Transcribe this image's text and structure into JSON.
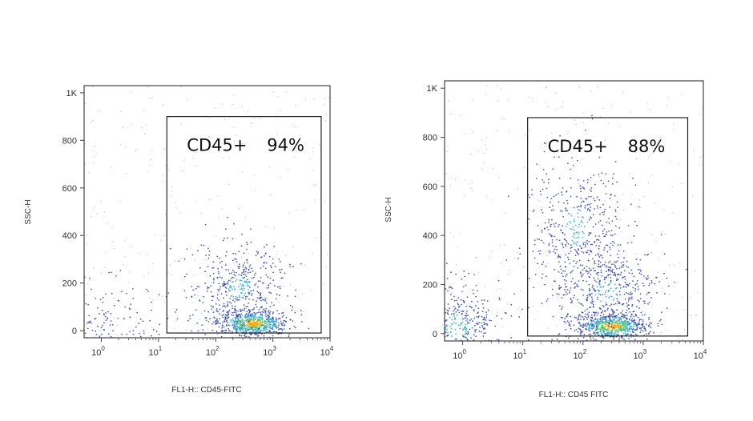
{
  "chart_data": [
    {
      "type": "scatter",
      "subtype": "flow-cytometry-density-plot",
      "xlabel": "FL1-H:: CD45-FITC",
      "ylabel": "SSC-H",
      "xscale": "log",
      "xlim": [
        0.5,
        10000
      ],
      "ylim": [
        -30,
        1030
      ],
      "yticks": [
        {
          "value": 0,
          "label": "0"
        },
        {
          "value": 200,
          "label": "200"
        },
        {
          "value": 400,
          "label": "400"
        },
        {
          "value": 600,
          "label": "600"
        },
        {
          "value": 800,
          "label": "800"
        },
        {
          "value": 1000,
          "label": "1K"
        }
      ],
      "xticks": [
        {
          "value": 1,
          "base": "10",
          "exp": "0"
        },
        {
          "value": 10,
          "base": "10",
          "exp": "1"
        },
        {
          "value": 100,
          "base": "10",
          "exp": "2"
        },
        {
          "value": 1000,
          "base": "10",
          "exp": "3"
        },
        {
          "value": 10000,
          "base": "10",
          "exp": "4"
        }
      ],
      "gate": {
        "name": "CD45+",
        "percent": "94%",
        "x_range": [
          14,
          7000
        ],
        "y_range": [
          -10,
          900
        ]
      },
      "populations": [
        {
          "x_center": 450,
          "y_center": 30,
          "density": "high"
        },
        {
          "x_center": 250,
          "y_center": 180,
          "density": "medium"
        },
        {
          "x_center": 1.5,
          "y_center": 20,
          "density": "low"
        }
      ]
    },
    {
      "type": "scatter",
      "subtype": "flow-cytometry-density-plot",
      "xlabel": "FL1-H:: CD45 FITC",
      "ylabel": "SSC-H",
      "xscale": "log",
      "xlim": [
        0.5,
        10000
      ],
      "ylim": [
        -30,
        1030
      ],
      "yticks": [
        {
          "value": 0,
          "label": "0"
        },
        {
          "value": 200,
          "label": "200"
        },
        {
          "value": 400,
          "label": "400"
        },
        {
          "value": 600,
          "label": "600"
        },
        {
          "value": 800,
          "label": "800"
        },
        {
          "value": 1000,
          "label": "1K"
        }
      ],
      "xticks": [
        {
          "value": 1,
          "base": "10",
          "exp": "0"
        },
        {
          "value": 10,
          "base": "10",
          "exp": "1"
        },
        {
          "value": 100,
          "base": "10",
          "exp": "2"
        },
        {
          "value": 1000,
          "base": "10",
          "exp": "3"
        },
        {
          "value": 10000,
          "base": "10",
          "exp": "4"
        }
      ],
      "gate": {
        "name": "CD45+",
        "percent": "88%",
        "x_range": [
          12,
          5500
        ],
        "y_range": [
          -10,
          880
        ]
      },
      "populations": [
        {
          "x_center": 300,
          "y_center": 30,
          "density": "high"
        },
        {
          "x_center": 250,
          "y_center": 170,
          "density": "medium"
        },
        {
          "x_center": 80,
          "y_center": 430,
          "density": "medium"
        },
        {
          "x_center": 0.8,
          "y_center": 30,
          "density": "medium"
        }
      ]
    }
  ]
}
